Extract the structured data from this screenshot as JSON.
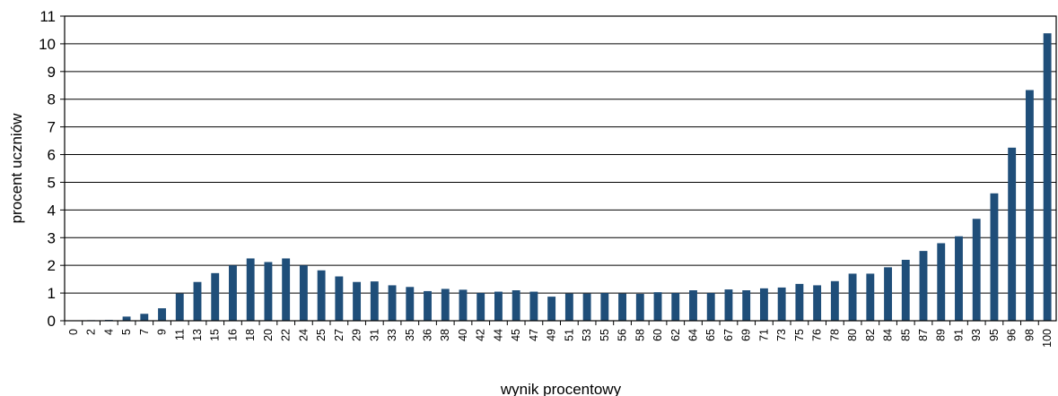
{
  "chart_data": {
    "type": "bar",
    "title": "",
    "xlabel": "wynik procentowy",
    "ylabel": "procent uczniów",
    "ylim": [
      0,
      11
    ],
    "yticks": [
      0,
      1,
      2,
      3,
      4,
      5,
      6,
      7,
      8,
      9,
      10,
      11
    ],
    "grid": true,
    "legend": "none",
    "colors": {
      "bar": "#1f4e79",
      "grid": "#000000",
      "axis": "#000000"
    },
    "categories": [
      "0",
      "2",
      "4",
      "5",
      "7",
      "9",
      "11",
      "13",
      "15",
      "16",
      "18",
      "20",
      "22",
      "24",
      "25",
      "27",
      "29",
      "31",
      "33",
      "35",
      "36",
      "38",
      "40",
      "42",
      "44",
      "45",
      "47",
      "49",
      "51",
      "53",
      "55",
      "56",
      "58",
      "60",
      "62",
      "64",
      "65",
      "67",
      "69",
      "71",
      "73",
      "75",
      "76",
      "78",
      "80",
      "82",
      "84",
      "85",
      "87",
      "89",
      "91",
      "93",
      "95",
      "96",
      "98",
      "100"
    ],
    "values": [
      0.01,
      0.02,
      0.03,
      0.15,
      0.25,
      0.45,
      0.98,
      1.4,
      1.72,
      2.0,
      2.25,
      2.12,
      2.25,
      2.0,
      1.82,
      1.6,
      1.4,
      1.42,
      1.28,
      1.22,
      1.07,
      1.15,
      1.12,
      1.0,
      1.05,
      1.1,
      1.05,
      0.87,
      0.98,
      0.98,
      1.0,
      0.98,
      0.97,
      1.03,
      1.0,
      1.1,
      1.0,
      1.13,
      1.1,
      1.17,
      1.2,
      1.33,
      1.28,
      1.43,
      1.7,
      1.7,
      1.93,
      2.2,
      2.52,
      2.8,
      3.05,
      3.68,
      4.6,
      6.25,
      8.33,
      10.38
    ]
  }
}
